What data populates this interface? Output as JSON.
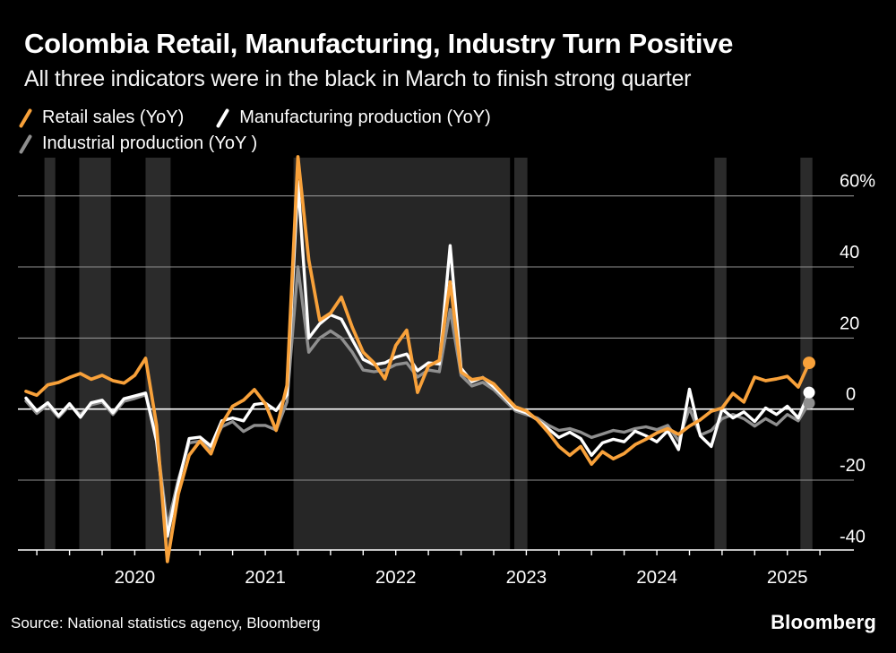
{
  "footer": {
    "source": "Source: National statistics agency, Bloomberg",
    "brand": "Bloomberg"
  },
  "chart_data": {
    "type": "line",
    "title": "Colombia Retail, Manufacturing, Industry Turn Positive",
    "subtitle": "All three indicators were in the black in March to finish strong quarter",
    "frequency": "monthly",
    "x_start_month": "2019-03",
    "x_end_month": "2025-03",
    "grid": true,
    "legend_position": "top-left",
    "background_color": "#000000",
    "band_color": "#2b2b2b",
    "wide_band_color": "#262626",
    "gridline_color": "#8f8f8f",
    "zero_line_color": "#ffffff",
    "y_axis": {
      "tick_labels": [
        "60%",
        "40",
        "20",
        "0",
        "-20",
        "-40"
      ],
      "tick_values": [
        60,
        40,
        20,
        0,
        -20,
        -40
      ],
      "ylim": [
        -45,
        71
      ]
    },
    "x_axis": {
      "year_labels": [
        "2020",
        "2021",
        "2022",
        "2023",
        "2024",
        "2025"
      ],
      "year_month_indices": [
        10,
        22,
        34,
        46,
        58,
        70
      ],
      "minor_tick_every_months": 3
    },
    "highlight_bands_month_ranges": [
      [
        1.7,
        2.7
      ],
      [
        4.9,
        7.8
      ],
      [
        11.0,
        13.3
      ],
      [
        24.6,
        44.5
      ],
      [
        44.9,
        46.1
      ],
      [
        63.3,
        64.4
      ],
      [
        71.2,
        72.3
      ]
    ],
    "series": [
      {
        "name": "Retail sales (YoY)",
        "color": "#f8a13a",
        "end_marker": true,
        "values": [
          5,
          3.9,
          6.8,
          7.5,
          8.9,
          10,
          8.4,
          9.5,
          8,
          7.3,
          9.5,
          14.3,
          -4.5,
          -42.9,
          -24,
          -13,
          -9,
          -12.6,
          -4.2,
          0.8,
          2.5,
          5.5,
          1.5,
          -6,
          6.7,
          71,
          42,
          25,
          27,
          31.5,
          23,
          16,
          13,
          8.5,
          17.9,
          22.2,
          4.7,
          12.1,
          13.7,
          35.8,
          10.4,
          8.3,
          8.8,
          7.1,
          3.8,
          0.6,
          -0.5,
          -3,
          -6.5,
          -10.5,
          -13,
          -10.5,
          -15.5,
          -12,
          -14,
          -12.5,
          -10,
          -8.5,
          -6.7,
          -5.5,
          -7.1,
          -4.8,
          -3,
          -0.6,
          0.3,
          4.4,
          2,
          9,
          8,
          8.5,
          9.2,
          6.2,
          13
        ]
      },
      {
        "name": "Manufacturing production (YoY)",
        "color": "#ffffff",
        "end_marker": true,
        "values": [
          3.1,
          -0.5,
          1.8,
          -1.9,
          1.5,
          -2.3,
          1.8,
          2.5,
          -1,
          2.9,
          3.7,
          4.5,
          -9,
          -35.8,
          -21,
          -8.3,
          -7.9,
          -10.4,
          -3.3,
          -2.5,
          -3.3,
          1.3,
          1.7,
          -0.4,
          4,
          64,
          20,
          24,
          26.5,
          25.3,
          19.5,
          14,
          12.5,
          13,
          14.6,
          15.5,
          10.8,
          13,
          12.7,
          46,
          11.5,
          7.7,
          8.9,
          6.3,
          3.3,
          0,
          -1,
          -3,
          -5.5,
          -8,
          -6.5,
          -8.3,
          -13,
          -9.5,
          -8.5,
          -9.2,
          -6.2,
          -7.5,
          -9.2,
          -6.1,
          -11.4,
          5.6,
          -7.5,
          -10.5,
          0,
          -2.5,
          -0.8,
          -3.5,
          0.3,
          -1.5,
          0.8,
          -2.5,
          4.7
        ]
      },
      {
        "name": "Industrial production (YoY )",
        "color": "#8f8f8f",
        "end_marker": true,
        "values": [
          2.3,
          -1.2,
          1.2,
          -2.3,
          1,
          -1.5,
          1.2,
          2,
          -1.5,
          2.2,
          3,
          4,
          -8,
          -33,
          -20,
          -9.5,
          -9,
          -11.3,
          -5,
          -3.5,
          -6.3,
          -4.6,
          -4.6,
          -5.9,
          2,
          40,
          16,
          20,
          22,
          20,
          16,
          11,
          10.5,
          11,
          12.5,
          13,
          9,
          11,
          10.5,
          28,
          9.5,
          6.5,
          7.5,
          5.5,
          2.5,
          -0.5,
          -1.5,
          -2.5,
          -4.5,
          -6,
          -5.5,
          -6.5,
          -8,
          -7,
          -6,
          -6.5,
          -5.5,
          -5,
          -5.8,
          -4.6,
          -8.9,
          0.2,
          -7.3,
          -6,
          -2.7,
          -1.5,
          -2.7,
          -4.8,
          -2.7,
          -4.4,
          -1.5,
          -3.3,
          1.7
        ]
      }
    ]
  }
}
